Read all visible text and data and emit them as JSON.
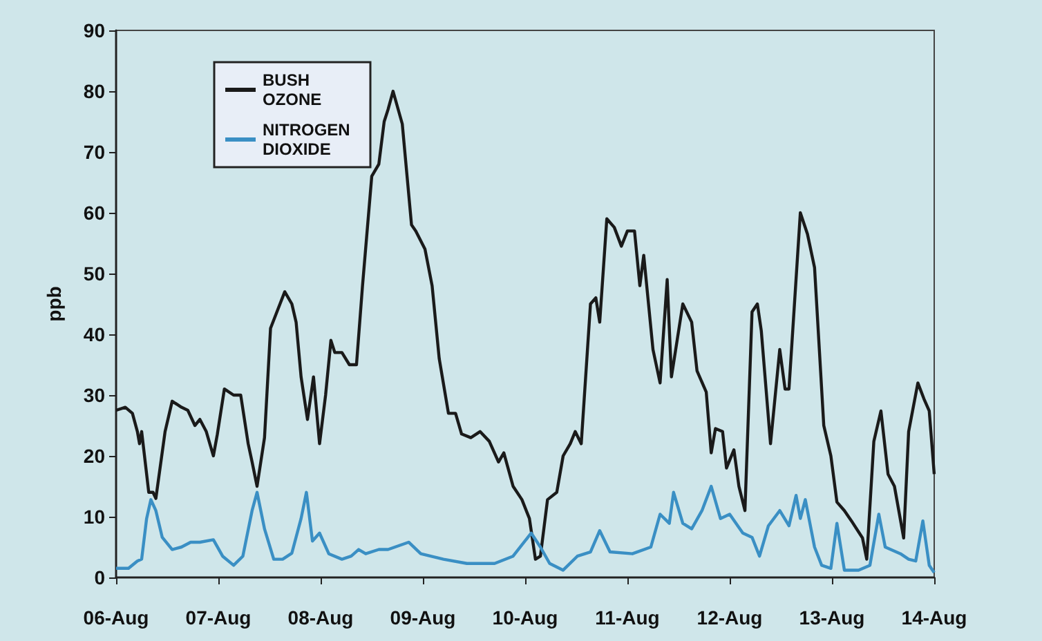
{
  "chart_data": {
    "type": "line",
    "ylabel": "ppb",
    "xlim": [
      "--08-06",
      "--08-14"
    ],
    "ylim": [
      0,
      90
    ],
    "xticks": [
      {
        "value": "--08-06",
        "label": "06-Aug"
      },
      {
        "value": "--08-07",
        "label": "07-Aug"
      },
      {
        "value": "--08-08",
        "label": "08-Aug"
      },
      {
        "value": "--08-09",
        "label": "09-Aug"
      },
      {
        "value": "--08-10",
        "label": "10-Aug"
      },
      {
        "value": "--08-11",
        "label": "11-Aug"
      },
      {
        "value": "--08-12",
        "label": "12-Aug"
      },
      {
        "value": "--08-13",
        "label": "13-Aug"
      },
      {
        "value": "--08-14",
        "label": "14-Aug"
      }
    ],
    "yticks": [
      0,
      10,
      20,
      30,
      40,
      50,
      60,
      70,
      80,
      90
    ],
    "grid": false,
    "legend": "top left",
    "marker": "none",
    "line_style": "solid",
    "series": [
      {
        "name": "BUSH OZONE",
        "color": "#1a1a1a",
        "x": [
          "--08-06T00:00",
          "--08-06T02:10",
          "--08-06T03:50",
          "--08-06T05:00",
          "--08-06T05:30",
          "--08-06T06:00",
          "--08-06T07:40",
          "--08-06T08:40",
          "--08-06T09:20",
          "--08-06T11:30",
          "--08-06T13:10",
          "--08-06T15:20",
          "--08-06T16:50",
          "--08-06T18:30",
          "--08-06T19:40",
          "--08-06T21:10",
          "--08-06T22:50",
          "--08-06T23:45",
          "--08-07T01:25",
          "--08-07T03:35",
          "--08-07T05:15",
          "--08-07T07:00",
          "--08-07T07:55",
          "--08-07T09:05",
          "--08-07T10:50",
          "--08-07T12:15",
          "--08-07T13:55",
          "--08-07T15:35",
          "--08-07T17:15",
          "--08-07T18:15",
          "--08-07T19:25",
          "--08-07T20:55",
          "--08-07T22:20",
          "--08-07T23:45",
          "--08-08T01:10",
          "--08-08T02:25",
          "--08-08T03:20",
          "--08-08T05:00",
          "--08-08T06:45",
          "--08-08T08:25",
          "--08-08T09:50",
          "--08-08T12:00",
          "--08-08T13:40",
          "--08-08T14:55",
          "--08-08T15:50",
          "--08-08T17:00",
          "--08-08T19:10",
          "--08-08T21:20",
          "--08-08T22:20",
          "--08-09T00:30",
          "--08-09T02:10",
          "--08-09T03:50",
          "--08-09T06:00",
          "--08-09T07:40",
          "--08-09T09:05",
          "--08-09T11:15",
          "--08-09T13:25",
          "--08-09T15:35",
          "--08-09T17:45",
          "--08-09T19:00",
          "--08-09T21:10",
          "--08-09T23:15",
          "--08-10T01:00",
          "--08-10T02:25",
          "--08-10T03:35",
          "--08-10T05:15",
          "--08-10T07:25",
          "--08-10T08:55",
          "--08-10T10:35",
          "--08-10T11:45",
          "--08-10T13:10",
          "--08-10T15:20",
          "--08-10T16:35",
          "--08-10T17:30",
          "--08-10T19:10",
          "--08-10T20:55",
          "--08-10T22:35",
          "--08-11T00:00",
          "--08-11T01:40",
          "--08-11T02:55",
          "--08-11T03:50",
          "--08-11T06:00",
          "--08-11T07:40",
          "--08-11T09:20",
          "--08-11T10:20",
          "--08-11T13:00",
          "--08-11T15:05",
          "--08-11T16:20",
          "--08-11T18:30",
          "--08-11T19:40",
          "--08-11T20:40",
          "--08-11T22:20",
          "--08-11T23:15",
          "--08-12T01:00",
          "--08-12T02:10",
          "--08-12T03:35",
          "--08-12T05:15",
          "--08-12T06:30",
          "--08-12T07:25",
          "--08-12T09:35",
          "--08-12T11:45",
          "--08-12T13:00",
          "--08-12T13:55",
          "--08-12T16:35",
          "--08-12T18:15",
          "--08-12T19:55",
          "--08-12T22:05",
          "--08-12T23:45",
          "--08-13T01:10",
          "--08-13T02:55",
          "--08-13T04:35",
          "--08-13T07:10",
          "--08-13T08:10",
          "--08-13T09:50",
          "--08-13T11:30",
          "--08-13T13:10",
          "--08-13T14:40",
          "--08-13T16:50",
          "--08-13T18:00",
          "--08-13T20:10",
          "--08-13T21:35",
          "--08-13T22:50",
          "--08-14T00:00"
        ],
        "values": [
          27.5,
          28,
          27,
          24,
          22,
          24,
          14,
          14,
          13,
          24,
          29,
          28,
          27.5,
          25,
          26,
          24,
          20,
          23.5,
          31,
          30,
          30,
          22,
          19,
          15,
          23,
          41,
          44,
          47,
          45,
          42,
          33,
          26,
          33,
          22,
          30,
          39,
          37,
          37,
          35,
          35,
          48,
          66,
          68,
          75,
          77,
          80,
          74.6,
          58,
          57,
          54,
          48,
          36,
          27,
          27,
          23.6,
          23,
          24,
          22.4,
          19,
          20.5,
          15,
          12.8,
          9.7,
          3,
          3.5,
          12.8,
          14,
          20,
          22,
          24,
          22,
          45,
          46,
          42,
          59,
          57.6,
          54.5,
          57,
          57,
          48,
          53,
          37.5,
          32,
          49,
          33,
          45,
          42,
          34,
          30.5,
          20.5,
          24.5,
          24,
          18,
          21,
          15,
          11,
          43.7,
          45,
          40.6,
          22,
          37.5,
          31,
          31,
          60,
          56.5,
          51,
          25,
          20,
          12.4,
          11,
          9.3,
          6.5,
          3,
          22.4,
          27.4,
          17,
          15,
          6.5,
          24,
          32,
          29.4,
          27.4,
          17
        ]
      },
      {
        "name": "NITROGEN DIOXIDE",
        "color": "#3a8fc4",
        "x": [
          "--08-06T00:00",
          "--08-06T02:55",
          "--08-06T05:00",
          "--08-06T06:00",
          "--08-06T07:10",
          "--08-06T08:10",
          "--08-06T09:20",
          "--08-06T10:50",
          "--08-06T13:10",
          "--08-06T15:20",
          "--08-06T17:30",
          "--08-06T19:40",
          "--08-06T22:50",
          "--08-07T01:00",
          "--08-07T03:35",
          "--08-07T05:45",
          "--08-07T07:55",
          "--08-07T09:05",
          "--08-07T10:50",
          "--08-07T13:00",
          "--08-07T15:05",
          "--08-07T17:15",
          "--08-07T19:25",
          "--08-07T20:40",
          "--08-07T22:05",
          "--08-07T23:45",
          "--08-08T01:55",
          "--08-08T05:00",
          "--08-08T07:10",
          "--08-08T08:55",
          "--08-08T10:35",
          "--08-08T13:40",
          "--08-08T15:50",
          "--08-08T20:40",
          "--08-08T23:30",
          "--08-09T04:50",
          "--08-09T10:20",
          "--08-09T16:50",
          "--08-09T21:10",
          "--08-10T01:25",
          "--08-10T03:35",
          "--08-10T05:45",
          "--08-10T08:55",
          "--08-10T12:15",
          "--08-10T15:20",
          "--08-10T17:30",
          "--08-10T19:55",
          "--08-11T01:10",
          "--08-11T05:30",
          "--08-11T07:40",
          "--08-11T09:50",
          "--08-11T10:50",
          "--08-11T13:00",
          "--08-11T15:05",
          "--08-11T17:30",
          "--08-11T19:40",
          "--08-11T21:50",
          "--08-12T00:00",
          "--08-12T03:05",
          "--08-12T05:15",
          "--08-12T07:00",
          "--08-12T09:05",
          "--08-12T11:45",
          "--08-12T13:55",
          "--08-12T15:35",
          "--08-12T16:35",
          "--08-12T17:45",
          "--08-12T19:55",
          "--08-12T21:35",
          "--08-12T23:45",
          "--08-13T01:10",
          "--08-13T02:55",
          "--08-13T06:15",
          "--08-13T08:55",
          "--08-13T11:00",
          "--08-13T12:30",
          "--08-13T16:05",
          "--08-13T18:00",
          "--08-13T19:40",
          "--08-13T21:20",
          "--08-13T22:50",
          "--08-14T00:00"
        ],
        "values": [
          1.5,
          1.5,
          2.7,
          3,
          9.7,
          12.8,
          11,
          6.6,
          4.6,
          5,
          5.8,
          5.8,
          6.2,
          3.5,
          2,
          3.5,
          11,
          14,
          8,
          3,
          3,
          4,
          9.7,
          14,
          6,
          7.3,
          3.9,
          3,
          3.5,
          4.6,
          3.9,
          4.6,
          4.6,
          5.8,
          3.9,
          3,
          2.3,
          2.3,
          3.5,
          7.3,
          5,
          2.3,
          1.2,
          3.5,
          4.2,
          7.7,
          4.2,
          3.9,
          5,
          10.4,
          8.9,
          14,
          8.9,
          8,
          11,
          15,
          9.7,
          10.4,
          7.3,
          6.6,
          3.5,
          8.5,
          11,
          8.5,
          13.5,
          9.7,
          12.8,
          5,
          2,
          1.5,
          8.9,
          1.2,
          1.2,
          2,
          10.4,
          5,
          3.9,
          3,
          2.7,
          9.3,
          2,
          0.8
        ]
      }
    ]
  }
}
